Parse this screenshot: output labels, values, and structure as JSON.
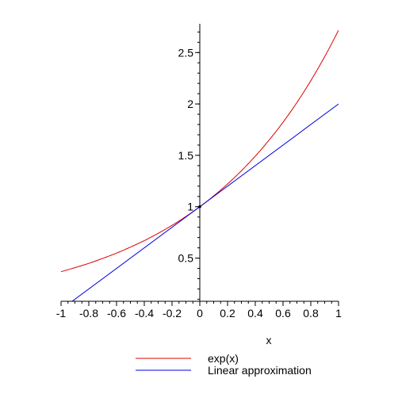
{
  "chart_data": {
    "type": "line",
    "title": "",
    "xlabel": "x",
    "ylabel": "",
    "xlim": [
      -1,
      1
    ],
    "ylim": [
      0.08,
      2.78
    ],
    "grid": false,
    "legend_position": "bottom",
    "x_ticks": [
      -1,
      -0.8,
      -0.6,
      -0.4,
      -0.2,
      0,
      0.2,
      0.4,
      0.6,
      0.8,
      1
    ],
    "x_tick_labels": [
      "-1",
      "-0.8",
      "-0.6",
      "-0.4",
      "-0.2",
      "0",
      "0.2",
      "0.4",
      "0.6",
      "0.8",
      "1"
    ],
    "y_ticks": [
      0.5,
      1,
      1.5,
      2,
      2.5
    ],
    "y_tick_labels": [
      "0.5",
      "1",
      "1.5",
      "2",
      "2.5"
    ],
    "marked_point": {
      "x": 0,
      "y": 1
    },
    "series": [
      {
        "name": "exp(x)",
        "color": "#e00000",
        "x": [
          -1,
          -0.9,
          -0.8,
          -0.7,
          -0.6,
          -0.5,
          -0.4,
          -0.3,
          -0.2,
          -0.1,
          0,
          0.1,
          0.2,
          0.3,
          0.4,
          0.5,
          0.6,
          0.7,
          0.8,
          0.9,
          1
        ],
        "values": [
          0.368,
          0.407,
          0.449,
          0.497,
          0.549,
          0.607,
          0.67,
          0.741,
          0.819,
          0.905,
          1.0,
          1.105,
          1.221,
          1.35,
          1.492,
          1.649,
          1.822,
          2.014,
          2.226,
          2.46,
          2.718
        ]
      },
      {
        "name": "Linear approximation",
        "color": "#0000e0",
        "x": [
          -1,
          1
        ],
        "values": [
          0,
          2
        ]
      }
    ]
  }
}
